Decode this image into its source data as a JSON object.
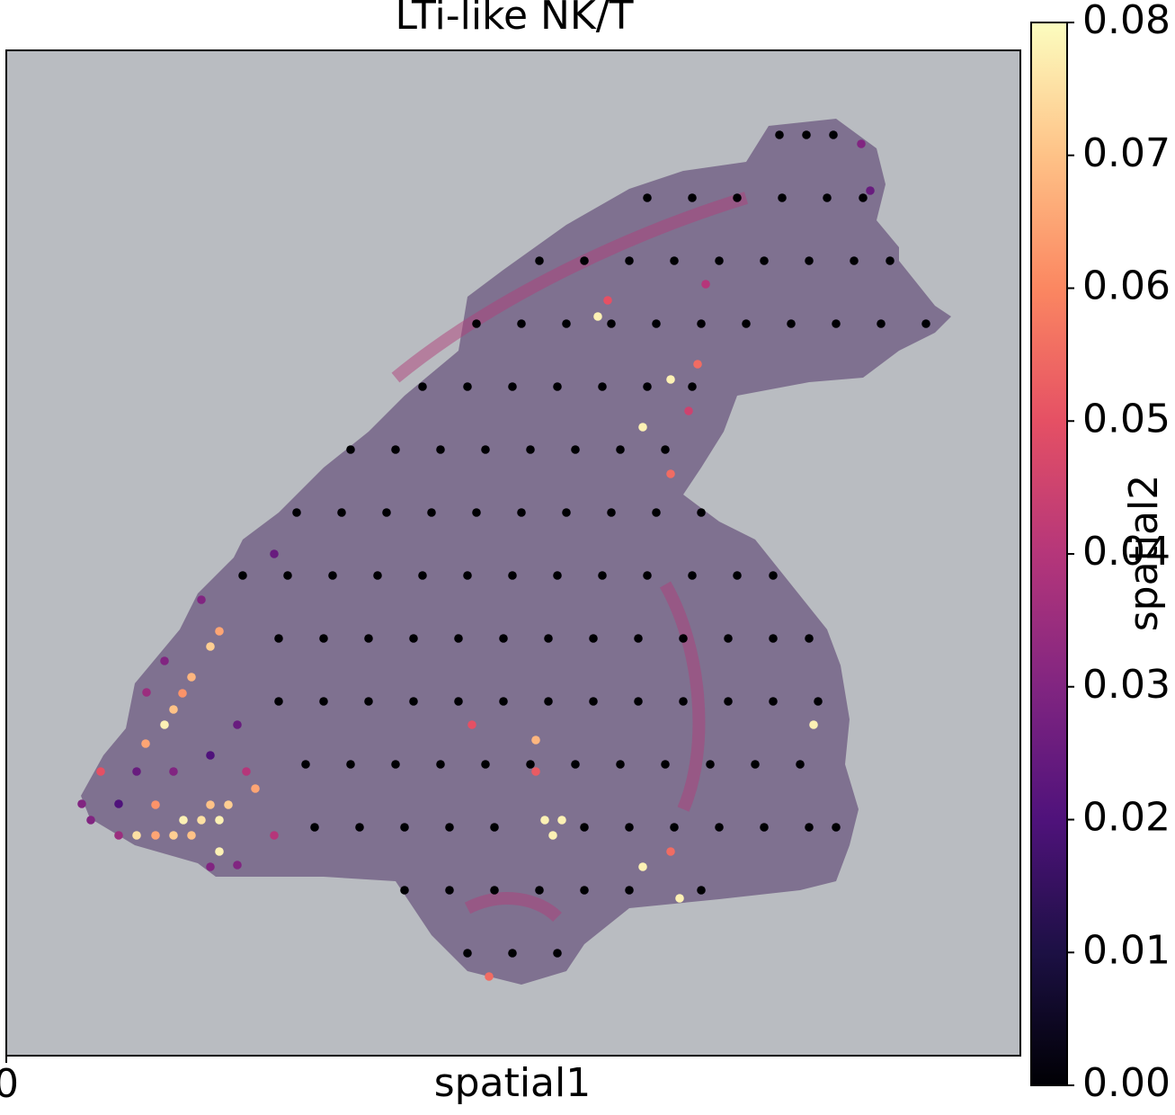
{
  "chart_data": {
    "type": "scatter",
    "title": "LTi-like NK/T",
    "xlabel": "spatial1",
    "ylabel": "spatial2",
    "colormap": "magma",
    "xlim": [
      0,
      1128
    ],
    "ylim": [
      1118,
      0
    ],
    "xticks": [
      0
    ],
    "clim": [
      0,
      0.08
    ],
    "cticks": [
      {
        "value": 0,
        "label": "0.00"
      },
      {
        "value": 0.01,
        "label": "0.01"
      },
      {
        "value": 0.02,
        "label": "0.02"
      },
      {
        "value": 0.03,
        "label": "0.03"
      },
      {
        "value": 0.04,
        "label": "0.04"
      },
      {
        "value": 0.05,
        "label": "0.05"
      },
      {
        "value": 0.06,
        "label": "0.06"
      },
      {
        "value": 0.07,
        "label": "0.07"
      },
      {
        "value": 0.08,
        "label": "0.08"
      }
    ],
    "x": [
      658,
      669,
      769,
      739,
      759,
      708,
      739,
      176,
      155,
      227,
      237,
      206,
      196,
      186,
      518,
      589,
      589,
      599,
      618,
      608,
      898,
      708,
      749,
      739,
      537,
      197,
      217,
      237,
      227,
      247,
      237,
      145,
      166,
      186,
      166,
      277,
      105,
      206,
      951,
      961,
      778,
      217,
      298,
      94,
      84,
      125,
      257,
      227,
      298,
      267,
      156,
      176,
      125,
      145,
      186,
      227,
      257,
      860,
      890,
      920,
      713,
      763,
      813,
      863,
      913,
      953,
      593,
      643,
      693,
      743,
      793,
      843,
      893,
      943,
      983,
      523,
      573,
      623,
      673,
      723,
      773,
      823,
      873,
      923,
      973,
      1023,
      463,
      513,
      563,
      613,
      663,
      713,
      763,
      383,
      433,
      483,
      533,
      583,
      633,
      683,
      733,
      323,
      373,
      423,
      473,
      523,
      573,
      623,
      673,
      723,
      773,
      263,
      313,
      363,
      413,
      463,
      513,
      563,
      613,
      663,
      713,
      763,
      813,
      853,
      303,
      353,
      403,
      453,
      503,
      553,
      603,
      653,
      703,
      753,
      803,
      853,
      893,
      303,
      353,
      403,
      453,
      503,
      553,
      603,
      653,
      703,
      753,
      803,
      853,
      903,
      333,
      383,
      433,
      483,
      533,
      583,
      633,
      683,
      733,
      783,
      833,
      883,
      343,
      393,
      443,
      493,
      543,
      643,
      693,
      743,
      793,
      843,
      893,
      923,
      443,
      493,
      543,
      593,
      643,
      693,
      773,
      513,
      563,
      613
    ],
    "y": [
      296,
      278,
      349,
      366,
      401,
      419,
      471,
      750,
      771,
      663,
      646,
      697,
      715,
      733,
      750,
      767,
      802,
      856,
      856,
      873,
      750,
      908,
      943,
      891,
      1030,
      856,
      856,
      856,
      839,
      839,
      891,
      873,
      873,
      873,
      839,
      821,
      802,
      873,
      104,
      156,
      260,
      611,
      560,
      856,
      838,
      873,
      906,
      908,
      873,
      802,
      714,
      679,
      838,
      802,
      802,
      784,
      750,
      94,
      94,
      94,
      164,
      164,
      164,
      164,
      164,
      164,
      234,
      234,
      234,
      234,
      234,
      234,
      234,
      234,
      234,
      304,
      304,
      304,
      304,
      304,
      304,
      304,
      304,
      304,
      304,
      304,
      374,
      374,
      374,
      374,
      374,
      374,
      374,
      444,
      444,
      444,
      444,
      444,
      444,
      444,
      444,
      514,
      514,
      514,
      514,
      514,
      514,
      514,
      514,
      514,
      514,
      584,
      584,
      584,
      584,
      584,
      584,
      584,
      584,
      584,
      584,
      584,
      584,
      584,
      654,
      654,
      654,
      654,
      654,
      654,
      654,
      654,
      654,
      654,
      654,
      654,
      654,
      724,
      724,
      724,
      724,
      724,
      724,
      724,
      724,
      724,
      724,
      724,
      724,
      724,
      794,
      794,
      794,
      794,
      794,
      794,
      794,
      794,
      794,
      794,
      794,
      794,
      864,
      864,
      864,
      864,
      864,
      864,
      864,
      864,
      864,
      864,
      864,
      864,
      934,
      934,
      934,
      934,
      934,
      934,
      934,
      1004,
      1004,
      1004
    ],
    "values": [
      0.078,
      0.05,
      0.055,
      0.078,
      0.045,
      0.078,
      0.055,
      0.078,
      0.065,
      0.072,
      0.065,
      0.068,
      0.062,
      0.07,
      0.05,
      0.068,
      0.052,
      0.078,
      0.078,
      0.078,
      0.078,
      0.078,
      0.078,
      0.055,
      0.055,
      0.078,
      0.075,
      0.078,
      0.07,
      0.072,
      0.078,
      0.075,
      0.065,
      0.072,
      0.062,
      0.065,
      0.05,
      0.07,
      0.03,
      0.025,
      0.04,
      0.03,
      0.025,
      0.03,
      0.03,
      0.035,
      0.03,
      0.03,
      0.04,
      0.04,
      0.035,
      0.03,
      0.02,
      0.025,
      0.03,
      0.02,
      0.025,
      0,
      0,
      0,
      0,
      0,
      0,
      0,
      0,
      0,
      0,
      0,
      0,
      0,
      0,
      0,
      0,
      0,
      0,
      0,
      0,
      0,
      0,
      0,
      0,
      0,
      0,
      0,
      0,
      0,
      0,
      0,
      0,
      0,
      0,
      0,
      0,
      0,
      0,
      0,
      0,
      0,
      0,
      0,
      0,
      0,
      0,
      0,
      0,
      0,
      0,
      0,
      0,
      0,
      0,
      0,
      0,
      0,
      0,
      0,
      0,
      0,
      0,
      0,
      0,
      0,
      0,
      0,
      0,
      0,
      0,
      0,
      0,
      0,
      0,
      0,
      0,
      0,
      0,
      0,
      0,
      0,
      0,
      0,
      0,
      0,
      0,
      0,
      0,
      0,
      0,
      0,
      0,
      0,
      0,
      0,
      0,
      0,
      0,
      0,
      0,
      0,
      0,
      0,
      0,
      0,
      0,
      0,
      0,
      0,
      0,
      0,
      0,
      0,
      0,
      0,
      0,
      0,
      0,
      0,
      0,
      0,
      0,
      0,
      0,
      0,
      0,
      0
    ]
  }
}
